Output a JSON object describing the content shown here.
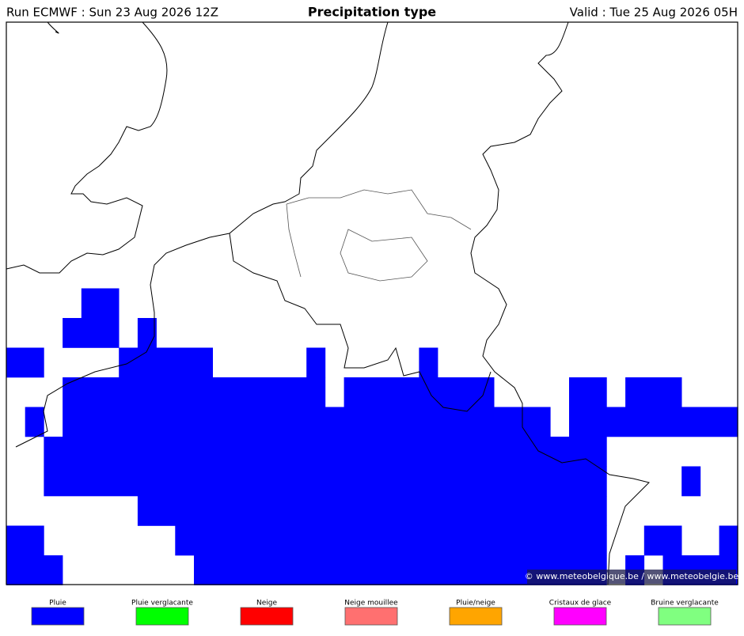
{
  "header": {
    "run": "Run ECMWF : Sun 23 Aug 2026 12Z",
    "title": "Precipitation type",
    "valid": "Valid : Tue 25 Aug 2026 05H"
  },
  "copyright": "© www.meteobelgique.be / www.meteobelgie.be",
  "legend": {
    "items": [
      {
        "label": "Pluie",
        "color": "#0000ff"
      },
      {
        "label": "Pluie verglacante",
        "color": "#00ff00"
      },
      {
        "label": "Neige",
        "color": "#ff0000"
      },
      {
        "label": "Neige mouillee",
        "color": "#ff7070"
      },
      {
        "label": "Pluie/neige",
        "color": "#ffa500"
      },
      {
        "label": "Cristaux de glace",
        "color": "#ff00ff"
      },
      {
        "label": "Bruine verglacante",
        "color": "#80ff80"
      }
    ]
  }
}
